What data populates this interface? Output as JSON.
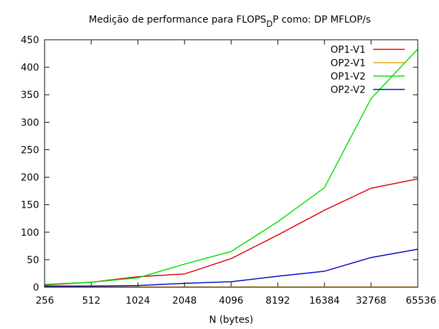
{
  "chart_data": {
    "type": "line",
    "title": "Medição de performance para FLOPS",
    "title_subscript": "D",
    "title_suffix": "P como: DP MFLOP/s",
    "xlabel": "N (bytes)",
    "ylabel": "",
    "categories": [
      "256",
      "512",
      "1024",
      "2048",
      "4096",
      "8192",
      "16384",
      "32768",
      "65536"
    ],
    "ylim": [
      0,
      450
    ],
    "yticks": [
      0,
      50,
      100,
      150,
      200,
      250,
      300,
      350,
      400,
      450
    ],
    "grid": false,
    "legend_position": "top-right",
    "series": [
      {
        "name": "OP1-V1",
        "color": "#e00000",
        "values": [
          4,
          9,
          19,
          24,
          52,
          95,
          140,
          180,
          197
        ]
      },
      {
        "name": "OP2-V1",
        "color": "#e8a000",
        "values": [
          0.3,
          0.3,
          0.3,
          0.3,
          0.3,
          0.3,
          0.3,
          0.3,
          0.3
        ]
      },
      {
        "name": "OP1-V2",
        "color": "#00e000",
        "values": [
          5,
          9,
          17,
          42,
          65,
          119,
          181,
          343,
          433
        ]
      },
      {
        "name": "OP2-V2",
        "color": "#0000c0",
        "values": [
          2,
          2,
          3,
          7,
          10,
          20,
          29,
          54,
          69
        ]
      }
    ]
  }
}
